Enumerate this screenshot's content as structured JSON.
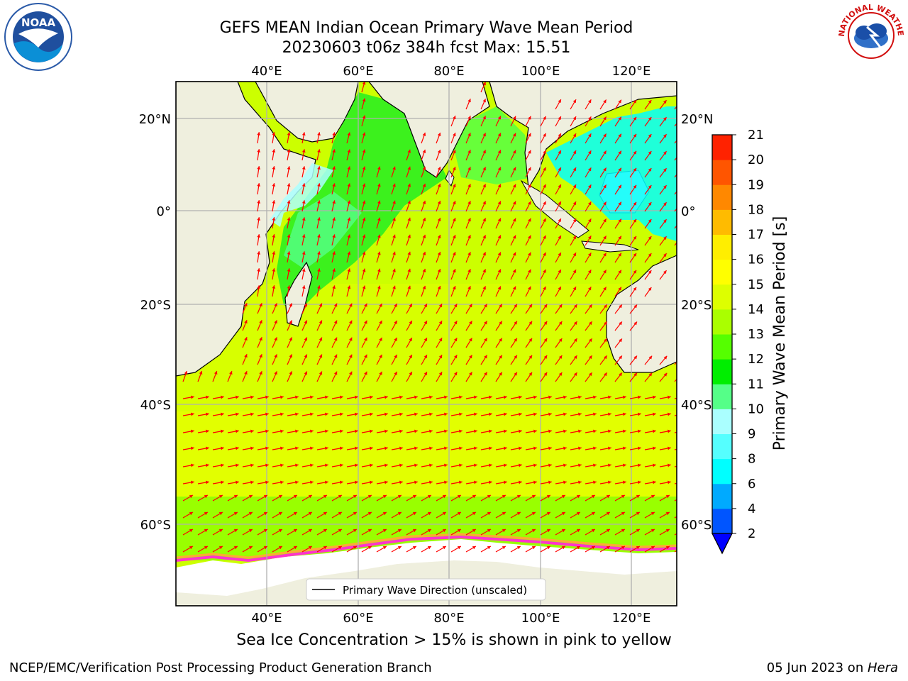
{
  "title": {
    "line1": "GEFS MEAN Indian Ocean Primary Wave Mean Period",
    "line2": "20230603 t06z 384h fcst   Max: 15.51"
  },
  "map": {
    "lon_range": [
      20,
      130
    ],
    "lat_range": [
      -72,
      28
    ],
    "lon_ticks": [
      "40°E",
      "60°E",
      "80°E",
      "100°E",
      "120°E"
    ],
    "lat_ticks": [
      "20°N",
      "0°",
      "20°S",
      "40°S",
      "60°S"
    ],
    "legend_label": "Primary Wave Direction (unscaled)",
    "field_dominant_period_s": 13.5,
    "land_color": "#efefde",
    "ice_color": "#ffffff",
    "arrow_color": "#ff0000"
  },
  "colorbar": {
    "label": "Primary Wave Mean Period [s]",
    "tick_labels": [
      "2",
      "4",
      "6",
      "8",
      "9",
      "10",
      "11",
      "12",
      "13",
      "14",
      "15",
      "16",
      "17",
      "18",
      "19",
      "20",
      "21"
    ],
    "colors": [
      "#0055ff",
      "#00aaff",
      "#00ffff",
      "#55ffff",
      "#aaffff",
      "#55ff88",
      "#00ee00",
      "#55ff00",
      "#aaff00",
      "#ddff00",
      "#ffff00",
      "#ffee00",
      "#ffbb00",
      "#ff8800",
      "#ff5500",
      "#ff2200",
      "#ff0000"
    ],
    "extend_color": "#0000ff"
  },
  "subtitle": "Sea Ice Concentration > 15% is shown in pink to yellow",
  "footer": {
    "left": "NCEP/EMC/Verification Post Processing Product Generation Branch",
    "right_date": "05 Jun 2023 on ",
    "right_machine": "Hera"
  },
  "logos": {
    "noaa_text": "NOAA",
    "nws_text": "NATIONAL WEATHER SERVICE"
  }
}
